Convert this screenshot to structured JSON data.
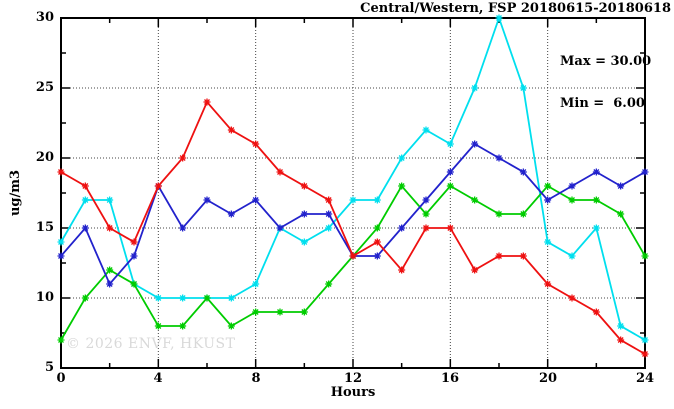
{
  "header": {
    "title": "Central/Western, FSP 20180615-20180618"
  },
  "stats_box": {
    "max_label": "Max = 30.00",
    "min_label": "Min =  6.00"
  },
  "watermark": {
    "text": "© 2026 ENVF, HKUST",
    "color": "#d9d9d9"
  },
  "chart_data": {
    "type": "line",
    "title": "Central/Western, FSP 20180615-20180618",
    "xlabel": "Hours",
    "ylabel": "ug/m3",
    "xlim": [
      0,
      24
    ],
    "ylim": [
      5,
      30
    ],
    "grid": true,
    "legend": "none",
    "marker": "star",
    "x_tick_labels": [
      "0",
      "4",
      "8",
      "12",
      "16",
      "20",
      "24"
    ],
    "y_tick_labels": [
      "5",
      "10",
      "15",
      "20",
      "25",
      "30"
    ],
    "x_major_ticks": [
      0,
      4,
      8,
      12,
      16,
      20,
      24
    ],
    "x_minor_ticks": [
      2,
      6,
      10,
      14,
      18,
      22
    ],
    "y_major_ticks": [
      5,
      10,
      15,
      20,
      25,
      30
    ],
    "y_minor_ticks": [
      7.5,
      12.5,
      17.5,
      22.5,
      27.5
    ],
    "grid_x": [
      4,
      8,
      12,
      16,
      20
    ],
    "grid_y": [
      10,
      15,
      20,
      25
    ],
    "x": [
      0,
      1,
      2,
      3,
      4,
      5,
      6,
      7,
      8,
      9,
      10,
      11,
      12,
      13,
      14,
      15,
      16,
      17,
      18,
      19,
      20,
      21,
      22,
      23,
      24
    ],
    "series": [
      {
        "name": "cyan-line",
        "color": "#00dfee",
        "values": [
          14,
          17,
          17,
          11,
          10,
          10,
          10,
          10,
          11,
          15,
          14,
          15,
          17,
          17,
          20,
          22,
          21,
          25,
          30,
          25,
          14,
          13,
          15,
          8,
          7
        ]
      },
      {
        "name": "green-line",
        "color": "#00cc00",
        "values": [
          7,
          10,
          12,
          11,
          8,
          8,
          10,
          8,
          9,
          9,
          9,
          11,
          13,
          15,
          18,
          16,
          18,
          17,
          16,
          16,
          18,
          17,
          17,
          16,
          13
        ]
      },
      {
        "name": "blue-line",
        "color": "#2222cc",
        "values": [
          13,
          15,
          11,
          13,
          18,
          15,
          17,
          16,
          17,
          15,
          16,
          16,
          13,
          13,
          15,
          17,
          19,
          21,
          20,
          19,
          17,
          18,
          19,
          18,
          19
        ]
      },
      {
        "name": "red-line",
        "color": "#ee1111",
        "values": [
          19,
          18,
          15,
          14,
          18,
          20,
          24,
          22,
          21,
          19,
          18,
          17,
          13,
          14,
          12,
          15,
          15,
          12,
          13,
          13,
          11,
          10,
          9,
          7,
          6
        ]
      }
    ],
    "stats": {
      "max": 30.0,
      "min": 6.0
    }
  }
}
